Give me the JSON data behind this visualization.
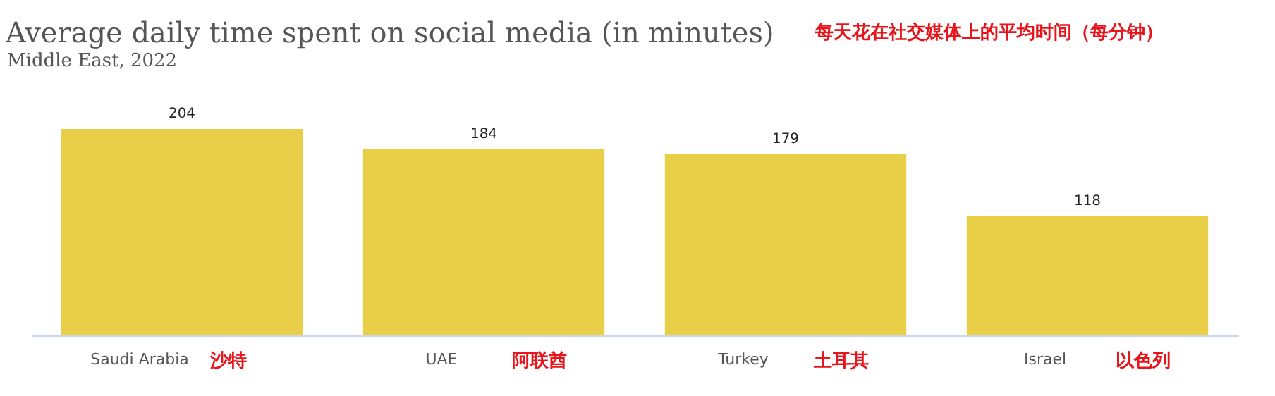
{
  "chart_data": {
    "type": "bar",
    "title": "Average daily time spent on social media (in minutes)",
    "subtitle": "Middle East, 2022",
    "categories": [
      "Saudi Arabia",
      "UAE",
      "Turkey",
      "Israel"
    ],
    "values": [
      204,
      184,
      179,
      118
    ],
    "color": "#e8cf47",
    "data_labels": true,
    "tick_labels": "x",
    "grid": false,
    "annotations": [
      "每天花在社交媒体上的平均时间（每分钟）",
      "沙特",
      "阿联酋",
      "土耳其",
      "以色列"
    ]
  }
}
